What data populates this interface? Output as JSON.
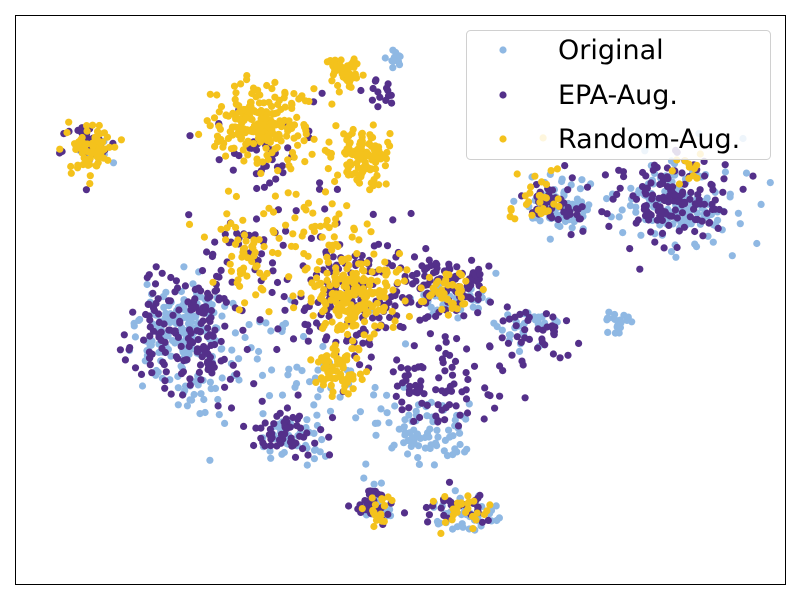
{
  "chart_data": {
    "type": "scatter",
    "title": "",
    "xlabel": "",
    "ylabel": "",
    "axes_ticks": "none",
    "grid": false,
    "legend_position": "top-right",
    "xlim": [
      0,
      100
    ],
    "ylim": [
      0,
      100
    ],
    "series": [
      {
        "name": "Original",
        "color": "#8fb8e3",
        "clusters": [
          {
            "cx": 22,
            "cy": 44,
            "rx": 5.5,
            "ry": 8,
            "n": 170
          },
          {
            "cx": 24,
            "cy": 33,
            "rx": 3,
            "ry": 3,
            "n": 20
          },
          {
            "cx": 36,
            "cy": 25,
            "rx": 4,
            "ry": 4,
            "n": 40
          },
          {
            "cx": 53,
            "cy": 26,
            "rx": 5,
            "ry": 5,
            "n": 80
          },
          {
            "cx": 58,
            "cy": 13,
            "rx": 4.5,
            "ry": 3,
            "n": 45
          },
          {
            "cx": 47,
            "cy": 13,
            "rx": 1.8,
            "ry": 2.5,
            "n": 25
          },
          {
            "cx": 57,
            "cy": 50,
            "rx": 4,
            "ry": 3,
            "n": 45
          },
          {
            "cx": 67,
            "cy": 45,
            "rx": 4,
            "ry": 3,
            "n": 30
          },
          {
            "cx": 71,
            "cy": 65,
            "rx": 3,
            "ry": 2,
            "n": 25
          },
          {
            "cx": 78,
            "cy": 46,
            "rx": 2,
            "ry": 2,
            "n": 20
          },
          {
            "cx": 86,
            "cy": 67,
            "rx": 7,
            "ry": 7,
            "n": 150
          },
          {
            "cx": 70,
            "cy": 67,
            "rx": 4,
            "ry": 4,
            "n": 50
          },
          {
            "cx": 38,
            "cy": 35,
            "rx": 10,
            "ry": 12,
            "n": 60
          },
          {
            "cx": 49,
            "cy": 92,
            "rx": 1.5,
            "ry": 1.5,
            "n": 12
          },
          {
            "cx": 10,
            "cy": 77,
            "rx": 3,
            "ry": 3,
            "n": 18
          }
        ]
      },
      {
        "name": "EPA-Aug.",
        "color": "#54308a",
        "clusters": [
          {
            "cx": 23,
            "cy": 45,
            "rx": 6,
            "ry": 11,
            "n": 170
          },
          {
            "cx": 36,
            "cy": 27,
            "rx": 5,
            "ry": 4,
            "n": 55
          },
          {
            "cx": 44,
            "cy": 51,
            "rx": 9,
            "ry": 12,
            "n": 170
          },
          {
            "cx": 56,
            "cy": 53,
            "rx": 5,
            "ry": 5,
            "n": 80
          },
          {
            "cx": 55,
            "cy": 35,
            "rx": 7,
            "ry": 7,
            "n": 75
          },
          {
            "cx": 46,
            "cy": 14,
            "rx": 2.5,
            "ry": 3,
            "n": 35
          },
          {
            "cx": 58,
            "cy": 14,
            "rx": 4,
            "ry": 3,
            "n": 30
          },
          {
            "cx": 85,
            "cy": 67,
            "rx": 7,
            "ry": 8,
            "n": 140
          },
          {
            "cx": 70,
            "cy": 67,
            "rx": 4,
            "ry": 4,
            "n": 50
          },
          {
            "cx": 67,
            "cy": 44,
            "rx": 5,
            "ry": 5,
            "n": 45
          },
          {
            "cx": 10,
            "cy": 77,
            "rx": 3.5,
            "ry": 3.5,
            "n": 35
          },
          {
            "cx": 33,
            "cy": 75,
            "rx": 8,
            "ry": 10,
            "n": 45
          },
          {
            "cx": 48,
            "cy": 87,
            "rx": 2,
            "ry": 2,
            "n": 15
          },
          {
            "cx": 30,
            "cy": 60,
            "rx": 5,
            "ry": 5,
            "n": 30
          }
        ]
      },
      {
        "name": "Random-Aug.",
        "color": "#f4c21c",
        "clusters": [
          {
            "cx": 32,
            "cy": 81,
            "rx": 5,
            "ry": 6,
            "n": 230
          },
          {
            "cx": 45,
            "cy": 75,
            "rx": 3.5,
            "ry": 4.5,
            "n": 110
          },
          {
            "cx": 43,
            "cy": 90,
            "rx": 2,
            "ry": 2.5,
            "n": 45
          },
          {
            "cx": 10,
            "cy": 76,
            "rx": 3,
            "ry": 4,
            "n": 70
          },
          {
            "cx": 44,
            "cy": 51,
            "rx": 6,
            "ry": 7,
            "n": 200
          },
          {
            "cx": 42,
            "cy": 38,
            "rx": 3,
            "ry": 4,
            "n": 70
          },
          {
            "cx": 56,
            "cy": 51,
            "rx": 3,
            "ry": 4,
            "n": 40
          },
          {
            "cx": 47,
            "cy": 13,
            "rx": 2,
            "ry": 2.5,
            "n": 20
          },
          {
            "cx": 58,
            "cy": 13,
            "rx": 3,
            "ry": 3,
            "n": 25
          },
          {
            "cx": 30,
            "cy": 55,
            "rx": 4,
            "ry": 6,
            "n": 40
          },
          {
            "cx": 68,
            "cy": 68,
            "rx": 3.5,
            "ry": 5,
            "n": 30
          },
          {
            "cx": 87,
            "cy": 72,
            "rx": 3,
            "ry": 3,
            "n": 12
          },
          {
            "cx": 36,
            "cy": 63,
            "rx": 10,
            "ry": 6,
            "n": 60
          }
        ]
      }
    ]
  }
}
